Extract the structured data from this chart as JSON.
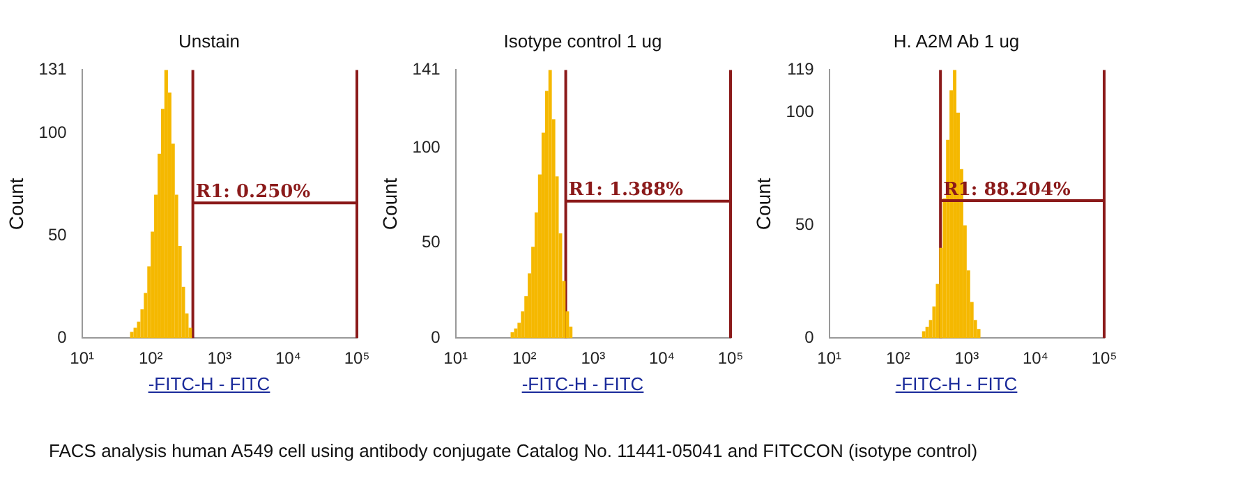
{
  "chart_data": [
    {
      "type": "histogram",
      "title": "Unstain",
      "xlabel": "-FITC-H - FITC",
      "ylabel": "Count",
      "log": "x",
      "grid": false,
      "bins": [
        50.1,
        56.2,
        63.1,
        70.8,
        79.4,
        89.1,
        100,
        112,
        126,
        141,
        158,
        178,
        200,
        224,
        251,
        282,
        316,
        355,
        398
      ],
      "values": [
        3,
        5,
        8,
        14,
        22,
        35,
        52,
        70,
        90,
        112,
        131,
        120,
        95,
        70,
        45,
        25,
        12,
        5
      ],
      "color": "#f5b800",
      "xlim": [
        10,
        100000
      ],
      "xticks": [
        {
          "value": 10,
          "label": "10¹"
        },
        {
          "value": 100,
          "label": "10²"
        },
        {
          "value": 1000,
          "label": "10³"
        },
        {
          "value": 10000,
          "label": "10⁴"
        },
        {
          "value": 100000,
          "label": "10⁵"
        }
      ],
      "ylim": [
        0,
        131
      ],
      "yticks": [
        0,
        50,
        100,
        131
      ],
      "series": [
        {
          "type": "line",
          "color": "#8b1a1a",
          "x": [
            410,
            100000
          ],
          "values": [
            66,
            66
          ]
        }
      ],
      "ref_lines": [
        {
          "axis": "x",
          "value": 410,
          "color": "#8b1a1a"
        },
        {
          "axis": "x",
          "value": 100000,
          "color": "#8b1a1a"
        }
      ],
      "annotations": [
        {
          "text": "R1: 0.250%",
          "x": 410,
          "y": 66
        },
        "FACS analysis human A549 cell using antibody conjugate Catalog No. 11441-05041 and FITCCON (isotype control)"
      ]
    },
    {
      "type": "histogram",
      "title": "Isotype control 1 ug",
      "xlabel": "-FITC-H - FITC",
      "ylabel": "Count",
      "log": "x",
      "grid": false,
      "bins": [
        63.1,
        70.8,
        79.4,
        89.1,
        100,
        112,
        126,
        141,
        158,
        178,
        200,
        224,
        251,
        282,
        316,
        355,
        398,
        447,
        501
      ],
      "values": [
        3,
        5,
        8,
        14,
        22,
        34,
        48,
        66,
        86,
        108,
        130,
        141,
        115,
        85,
        55,
        30,
        14,
        6
      ],
      "color": "#f5b800",
      "xlim": [
        10,
        100000
      ],
      "xticks": [
        {
          "value": 10,
          "label": "10¹"
        },
        {
          "value": 100,
          "label": "10²"
        },
        {
          "value": 1000,
          "label": "10³"
        },
        {
          "value": 10000,
          "label": "10⁴"
        },
        {
          "value": 100000,
          "label": "10⁵"
        }
      ],
      "ylim": [
        0,
        141
      ],
      "yticks": [
        0,
        50,
        100,
        141
      ],
      "series": [
        {
          "type": "line",
          "color": "#8b1a1a",
          "x": [
            400,
            100000
          ],
          "values": [
            72,
            72
          ]
        }
      ],
      "ref_lines": [
        {
          "axis": "x",
          "value": 400,
          "color": "#8b1a1a"
        },
        {
          "axis": "x",
          "value": 100000,
          "color": "#8b1a1a"
        }
      ],
      "annotations": [
        {
          "text": "R1: 1.388%",
          "x": 400,
          "y": 72
        }
      ]
    },
    {
      "type": "histogram",
      "title": "H. A2M Ab 1 ug",
      "xlabel": "-FITC-H - FITC",
      "ylabel": "Count",
      "log": "x",
      "grid": false,
      "bins": [
        224,
        251,
        282,
        316,
        355,
        398,
        447,
        501,
        562,
        631,
        708,
        794,
        891,
        1000,
        1122,
        1259,
        1413,
        1585
      ],
      "values": [
        3,
        5,
        8,
        14,
        24,
        40,
        62,
        88,
        110,
        119,
        100,
        75,
        50,
        30,
        16,
        8,
        4
      ],
      "color": "#f5b800",
      "xlim": [
        10,
        100000
      ],
      "xticks": [
        {
          "value": 10,
          "label": "10¹"
        },
        {
          "value": 100,
          "label": "10²"
        },
        {
          "value": 1000,
          "label": "10³"
        },
        {
          "value": 10000,
          "label": "10⁴"
        },
        {
          "value": 100000,
          "label": "10⁵"
        }
      ],
      "ylim": [
        0,
        119
      ],
      "yticks": [
        0,
        50,
        100,
        119
      ],
      "series": [
        {
          "type": "line",
          "color": "#8b1a1a",
          "x": [
            415,
            100000
          ],
          "values": [
            61,
            61
          ]
        }
      ],
      "ref_lines": [
        {
          "axis": "x",
          "value": 415,
          "color": "#8b1a1a"
        },
        {
          "axis": "x",
          "value": 100000,
          "color": "#8b1a1a"
        }
      ],
      "annotations": [
        {
          "text": "R1: 88.204%",
          "x": 415,
          "y": 61
        }
      ]
    }
  ]
}
